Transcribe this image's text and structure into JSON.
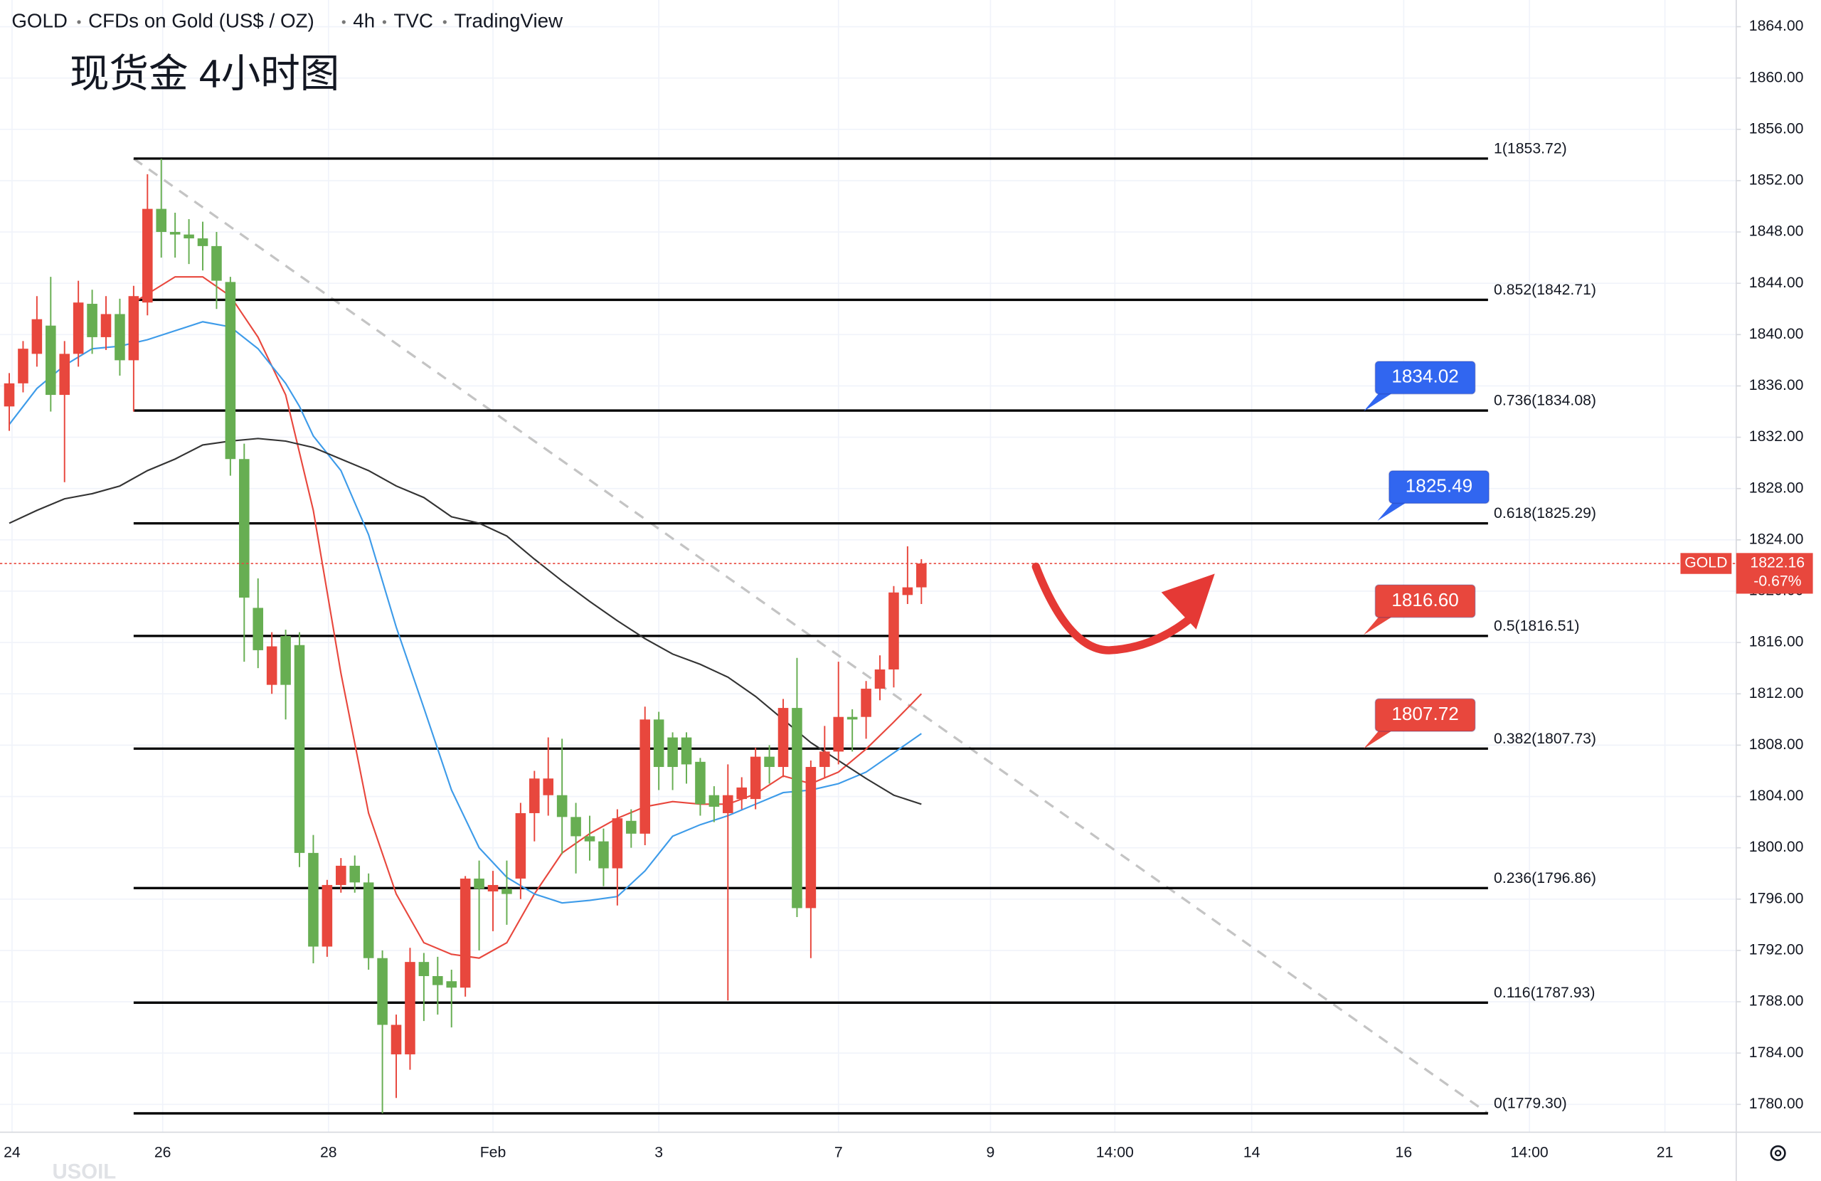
{
  "chart_data": {
    "type": "candlestick",
    "header": [
      "GOLD",
      "CFDs on Gold (US$ / OZ)",
      "4h",
      "TVC",
      "TradingView"
    ],
    "title": "现货金 4小时图",
    "watermark": "USOIL",
    "open": [
      1834.4,
      1836.2,
      1838.5,
      1840.7,
      1835.3,
      1838.5,
      1842.4,
      1839.8,
      1841.6,
      1838.0,
      1842.5,
      1849.8,
      1848.0,
      1847.8,
      1847.5,
      1846.9,
      1844.1,
      1830.3,
      1818.7,
      1812.7,
      1816.5,
      1815.8,
      1799.6,
      1792.3,
      1797.1,
      1798.6,
      1797.3,
      1791.4,
      1783.9,
      1783.9,
      1791.1,
      1790.0,
      1789.6,
      1789.1,
      1797.6,
      1796.6,
      1796.8,
      1797.6,
      1802.7,
      1804.1,
      1804.1,
      1802.4,
      1800.9,
      1800.5,
      1798.4,
      1802.1,
      1801.1,
      1810.0,
      1808.6,
      1808.6,
      1806.7,
      1804.1,
      1802.7,
      1803.8,
      1803.8,
      1807.1,
      1806.3,
      1810.9,
      1795.3,
      1806.3,
      1807.5,
      1810.2,
      1810.2,
      1812.4,
      1813.9,
      1819.7,
      1820.3
    ],
    "high": [
      1837.0,
      1839.5,
      1843.0,
      1844.5,
      1839.5,
      1844.2,
      1843.5,
      1843.0,
      1842.8,
      1843.8,
      1852.5,
      1853.7,
      1849.5,
      1849.0,
      1848.8,
      1848.0,
      1844.5,
      1831.5,
      1821.0,
      1816.8,
      1817.0,
      1816.8,
      1801.0,
      1797.5,
      1799.2,
      1799.4,
      1798.0,
      1792.0,
      1787.0,
      1792.2,
      1791.8,
      1791.5,
      1790.5,
      1797.8,
      1799.0,
      1798.2,
      1799.0,
      1803.5,
      1806.0,
      1808.6,
      1808.5,
      1803.5,
      1802.5,
      1801.5,
      1803.0,
      1803.0,
      1811.0,
      1810.6,
      1809.0,
      1809.0,
      1807.0,
      1804.8,
      1806.5,
      1805.5,
      1807.8,
      1808.0,
      1811.6,
      1814.8,
      1806.8,
      1809.5,
      1814.5,
      1810.8,
      1813.0,
      1815.0,
      1820.4,
      1823.5,
      1822.5
    ],
    "low": [
      1832.5,
      1835.5,
      1837.5,
      1834.0,
      1828.5,
      1837.5,
      1838.5,
      1838.8,
      1836.8,
      1834.0,
      1841.5,
      1846.0,
      1846.0,
      1845.5,
      1845.0,
      1842.0,
      1829.0,
      1814.5,
      1814.0,
      1812.0,
      1810.0,
      1798.5,
      1791.0,
      1791.5,
      1796.5,
      1796.5,
      1790.5,
      1779.3,
      1780.5,
      1782.7,
      1786.5,
      1787.0,
      1786.0,
      1788.4,
      1792.0,
      1793.5,
      1794.0,
      1796.0,
      1800.5,
      1802.5,
      1799.5,
      1798.0,
      1799.0,
      1797.0,
      1795.5,
      1800.0,
      1800.2,
      1804.5,
      1804.5,
      1805.0,
      1802.5,
      1802.0,
      1788.1,
      1803.0,
      1803.0,
      1805.0,
      1805.5,
      1794.6,
      1791.4,
      1805.5,
      1806.5,
      1807.5,
      1808.5,
      1811.5,
      1812.5,
      1819.0,
      1819.0
    ],
    "close": [
      1836.2,
      1838.9,
      1841.2,
      1835.3,
      1838.5,
      1842.5,
      1839.8,
      1841.6,
      1838.0,
      1843.0,
      1849.8,
      1848.0,
      1847.8,
      1847.5,
      1846.9,
      1844.2,
      1830.3,
      1819.5,
      1815.4,
      1815.7,
      1812.7,
      1799.6,
      1792.3,
      1797.1,
      1798.6,
      1797.3,
      1791.4,
      1786.2,
      1786.2,
      1791.1,
      1790.0,
      1789.3,
      1789.1,
      1797.6,
      1796.8,
      1797.1,
      1796.4,
      1802.7,
      1805.4,
      1805.4,
      1802.4,
      1800.9,
      1800.5,
      1798.4,
      1802.3,
      1801.1,
      1810.0,
      1806.3,
      1806.3,
      1806.5,
      1803.4,
      1803.2,
      1804.1,
      1804.7,
      1807.1,
      1806.3,
      1810.9,
      1795.3,
      1806.3,
      1807.5,
      1810.2,
      1810.0,
      1812.4,
      1813.9,
      1819.9,
      1820.3,
      1822.16
    ],
    "up_color": "#e8473d",
    "down_color": "#67ae52",
    "series": [
      {
        "color": "#e8473d",
        "x": [
          9,
          12,
          14,
          16,
          18,
          20,
          22,
          24,
          26,
          28,
          30,
          32,
          34,
          36,
          38,
          40,
          42,
          44,
          46,
          48,
          50,
          52,
          54,
          56,
          58,
          60,
          62,
          64,
          66
        ],
        "values": [
          1842.5,
          1844.5,
          1844.5,
          1843.0,
          1839.8,
          1835.3,
          1826.3,
          1813.6,
          1802.7,
          1796.4,
          1792.6,
          1791.7,
          1791.4,
          1792.6,
          1796.4,
          1799.6,
          1801.1,
          1802.3,
          1803.2,
          1803.6,
          1803.4,
          1803.4,
          1804.2,
          1805.6,
          1805.0,
          1805.9,
          1807.7,
          1809.8,
          1812.0
        ]
      },
      {
        "color": "#3d9be9",
        "x": [
          0,
          2,
          4,
          6,
          8,
          10,
          12,
          14,
          16,
          18,
          20,
          21,
          22,
          24,
          26,
          28,
          30,
          32,
          34,
          36,
          38,
          40,
          42,
          44,
          46,
          48,
          50,
          52,
          54,
          56,
          58,
          60,
          62,
          64,
          66
        ],
        "values": [
          1833.0,
          1835.8,
          1837.6,
          1838.9,
          1839.1,
          1839.6,
          1840.3,
          1841.0,
          1840.6,
          1838.9,
          1836.2,
          1834.4,
          1832.1,
          1829.4,
          1824.4,
          1817.2,
          1810.9,
          1804.5,
          1800.0,
          1797.7,
          1796.4,
          1795.7,
          1795.9,
          1796.2,
          1798.2,
          1800.9,
          1801.8,
          1802.5,
          1803.4,
          1804.3,
          1804.5,
          1805.0,
          1805.9,
          1807.4,
          1808.9
        ]
      },
      {
        "color": "#333333",
        "x": [
          0,
          2,
          4,
          6,
          8,
          10,
          12,
          14,
          16,
          18,
          20,
          22,
          24,
          26,
          28,
          30,
          32,
          34,
          36,
          38,
          40,
          42,
          44,
          46,
          48,
          50,
          52,
          54,
          56,
          58,
          60,
          62,
          64,
          66
        ],
        "values": [
          1825.3,
          1826.3,
          1827.2,
          1827.6,
          1828.2,
          1829.4,
          1830.3,
          1831.4,
          1831.7,
          1831.9,
          1831.7,
          1831.2,
          1830.3,
          1829.4,
          1828.2,
          1827.3,
          1825.8,
          1825.3,
          1824.3,
          1822.5,
          1820.8,
          1819.2,
          1817.7,
          1816.3,
          1815.1,
          1814.3,
          1813.3,
          1811.8,
          1810.0,
          1808.2,
          1806.8,
          1805.4,
          1804.1,
          1803.4
        ]
      }
    ],
    "trendline": {
      "x": [
        9,
        107
      ],
      "values": [
        1853.72,
        1779.3
      ],
      "color": "#c4c4c4"
    },
    "fib_levels": {
      "x": [
        9,
        107
      ],
      "levels": [
        {
          "value": 1853.72,
          "label": "1(1853.72)"
        },
        {
          "value": 1842.71,
          "label": "0.852(1842.71)"
        },
        {
          "value": 1834.08,
          "label": "0.736(1834.08)"
        },
        {
          "value": 1825.29,
          "label": "0.618(1825.29)"
        },
        {
          "value": 1816.51,
          "label": "0.5(1816.51)"
        },
        {
          "value": 1807.73,
          "label": "0.382(1807.73)"
        },
        {
          "value": 1796.86,
          "label": "0.236(1796.86)"
        },
        {
          "value": 1787.93,
          "label": "0.116(1787.93)"
        },
        {
          "value": 1779.3,
          "label": "0(1779.30)"
        }
      ]
    },
    "callouts": [
      {
        "x": 98,
        "value": 1834.02,
        "label": "1834.02",
        "color": "#3166f0"
      },
      {
        "x": 99,
        "value": 1825.49,
        "label": "1825.49",
        "color": "#3166f0"
      },
      {
        "x": 98,
        "value": 1816.6,
        "label": "1816.60",
        "color": "#e8473d"
      },
      {
        "x": 98,
        "value": 1807.72,
        "label": "1807.72",
        "color": "#e8473d"
      }
    ],
    "last": {
      "symbol": "GOLD",
      "value": 1822.16,
      "change_label": "-0.67%",
      "color": "#e8473d"
    },
    "xlim": [
      -0.67,
      124.96
    ],
    "ylim": [
      1777.83,
      1866.08
    ],
    "xticks": [
      {
        "value": 0.2,
        "label": "24"
      },
      {
        "value": 11.1,
        "label": "26"
      },
      {
        "value": 23.1,
        "label": "28"
      },
      {
        "value": 35.0,
        "label": "Feb"
      },
      {
        "value": 47.0,
        "label": "3"
      },
      {
        "value": 60.0,
        "label": "7"
      },
      {
        "value": 71.0,
        "label": "9"
      },
      {
        "value": 80.0,
        "label": "14:00"
      },
      {
        "value": 89.9,
        "label": "14"
      },
      {
        "value": 100.9,
        "label": "16"
      },
      {
        "value": 110.0,
        "label": "14:00"
      },
      {
        "value": 119.8,
        "label": "21"
      }
    ],
    "yticks": [
      {
        "value": 1780,
        "label": "1780.00"
      },
      {
        "value": 1784,
        "label": "1784.00"
      },
      {
        "value": 1788,
        "label": "1788.00"
      },
      {
        "value": 1792,
        "label": "1792.00"
      },
      {
        "value": 1796,
        "label": "1796.00"
      },
      {
        "value": 1800,
        "label": "1800.00"
      },
      {
        "value": 1804,
        "label": "1804.00"
      },
      {
        "value": 1808,
        "label": "1808.00"
      },
      {
        "value": 1812,
        "label": "1812.00"
      },
      {
        "value": 1816,
        "label": "1816.00"
      },
      {
        "value": 1820,
        "label": "1820.00"
      },
      {
        "value": 1824,
        "label": "1824.00"
      },
      {
        "value": 1828,
        "label": "1828.00"
      },
      {
        "value": 1832,
        "label": "1832.00"
      },
      {
        "value": 1836,
        "label": "1836.00"
      },
      {
        "value": 1840,
        "label": "1840.00"
      },
      {
        "value": 1844,
        "label": "1844.00"
      },
      {
        "value": 1848,
        "label": "1848.00"
      },
      {
        "value": 1852,
        "label": "1852.00"
      },
      {
        "value": 1856,
        "label": "1856.00"
      },
      {
        "value": 1860,
        "label": "1860.00"
      },
      {
        "value": 1864,
        "label": "1864.00"
      }
    ],
    "grid": true
  }
}
